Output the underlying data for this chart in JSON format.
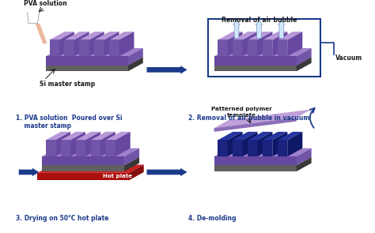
{
  "bg_color": "#ffffff",
  "panel_labels": [
    "1. PVA solution  Poured over Si\n    master stamp",
    "2. Removal of air bubble in vacuum",
    "3. Drying on 50°C hot plate",
    "4. De-molding"
  ],
  "colors": {
    "purple_top": "#a080cc",
    "purple_light": "#b898d8",
    "purple_mid": "#8b6db8",
    "purple_dark": "#7055a8",
    "purple_side": "#6648a0",
    "gray_base": "#606060",
    "gray_top": "#888888",
    "gray_dark": "#383838",
    "red_plate": "#cc2020",
    "red_dark": "#aa1010",
    "blue_ridge": "#1a237e",
    "blue_ridge_top": "#2535a0",
    "arrow_blue": "#1a3a8a",
    "vacuum_border": "#1a3a8a",
    "text_blue": "#1a3a8a",
    "text_dark": "#1a1a1a",
    "pour_color": "#e8a080",
    "white": "#ffffff",
    "peel_purple": "#c0a0d8",
    "upward_arrow_fill": "#d0e8f8",
    "upward_arrow_edge": "#7090c0"
  },
  "layout": {
    "fig_w": 4.74,
    "fig_h": 2.95,
    "dpi": 100
  }
}
